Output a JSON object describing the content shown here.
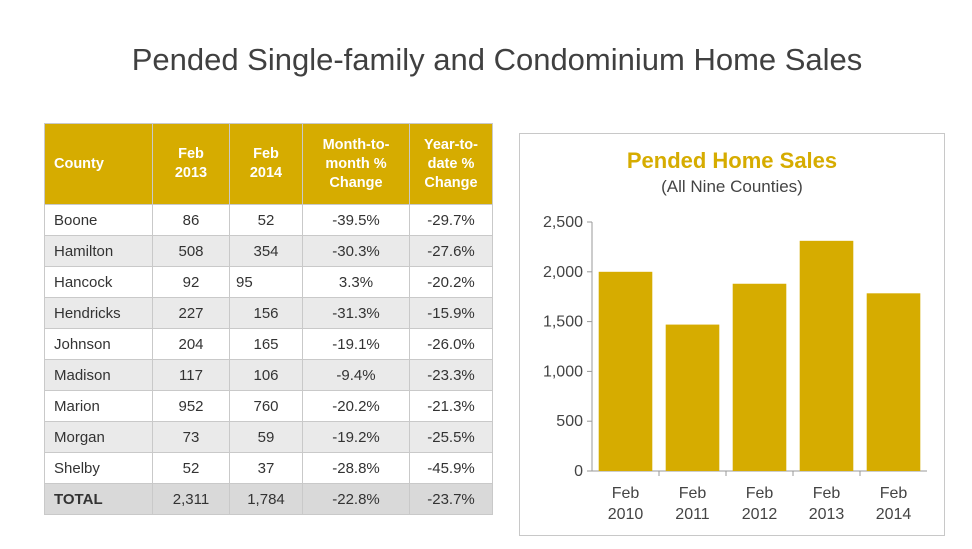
{
  "slide": {
    "title": "Pended Single-family and Condominium Home Sales"
  },
  "table": {
    "headers": {
      "county": "County",
      "feb2013": [
        "Feb",
        "2013"
      ],
      "feb2014": [
        "Feb",
        "2014"
      ],
      "mtm": [
        "Month-to-",
        "month %",
        "Change"
      ],
      "ytd": [
        "Year-to-",
        "date %",
        "Change"
      ]
    },
    "rows": [
      [
        "Boone",
        "86",
        "52",
        "-39.5%",
        "-29.7%"
      ],
      [
        "Hamilton",
        "508",
        "354",
        "-30.3%",
        "-27.6%"
      ],
      [
        "Hancock",
        "92",
        "95",
        "3.3%",
        "-20.2%"
      ],
      [
        "Hendricks",
        "227",
        "156",
        "-31.3%",
        "-15.9%"
      ],
      [
        "Johnson",
        "204",
        "165",
        "-19.1%",
        "-26.0%"
      ],
      [
        "Madison",
        "117",
        "106",
        "-9.4%",
        "-23.3%"
      ],
      [
        "Marion",
        "952",
        "760",
        "-20.2%",
        "-21.3%"
      ],
      [
        "Morgan",
        "73",
        "59",
        "-19.2%",
        "-25.5%"
      ],
      [
        "Shelby",
        "52",
        "37",
        "-28.8%",
        "-45.9%"
      ],
      [
        "TOTAL",
        "2,311",
        "1,784",
        "-22.8%",
        "-23.7%"
      ]
    ]
  },
  "chart_data": {
    "type": "bar",
    "title": "Pended Home Sales",
    "subtitle": "(All Nine Counties)",
    "categories": [
      [
        "Feb",
        "2010"
      ],
      [
        "Feb",
        "2011"
      ],
      [
        "Feb",
        "2012"
      ],
      [
        "Feb",
        "2013"
      ],
      [
        "Feb",
        "2014"
      ]
    ],
    "values": [
      2000,
      1470,
      1880,
      2311,
      1784
    ],
    "ylim": [
      0,
      2500
    ],
    "yticks": [
      0,
      500,
      1000,
      1500,
      2000,
      2500
    ],
    "ytick_labels": [
      "0",
      "500",
      "1,000",
      "1,500",
      "2,000",
      "2,500"
    ],
    "xlabel": "",
    "ylabel": "",
    "grid": false,
    "legend": "none",
    "bar_color": "#d6ac00"
  },
  "colors": {
    "accent": "#d6ac00",
    "alt_row": "#eaeaea",
    "total_row": "#d9d9d9"
  }
}
